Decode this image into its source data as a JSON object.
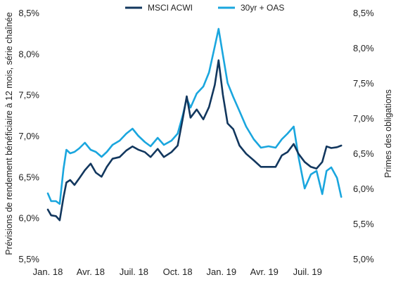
{
  "chart_data": {
    "type": "line",
    "title": "",
    "ylabel_left": "Prévisions de rendement bénéficiaire à 12 mois, série chaînée",
    "ylabel_right": "Primes des obligations",
    "ylim_left": [
      5.5,
      8.5
    ],
    "ylim_right": [
      5.0,
      8.5
    ],
    "x_range": [
      "2018-01-01",
      "2019-09-20"
    ],
    "x_ticks": [
      {
        "label": "Jan. 18",
        "date": "2018-01-01"
      },
      {
        "label": "Avr. 18",
        "date": "2018-04-01"
      },
      {
        "label": "Juil. 18",
        "date": "2018-07-01"
      },
      {
        "label": "Oct. 18",
        "date": "2018-10-01"
      },
      {
        "label": "Jan. 19",
        "date": "2019-01-01"
      },
      {
        "label": "Avr. 19",
        "date": "2019-04-01"
      },
      {
        "label": "Juil. 19",
        "date": "2019-07-01"
      }
    ],
    "y_ticks_left": [
      "5,5%",
      "6,0%",
      "6,5%",
      "7,0%",
      "7,5%",
      "8,0%",
      "8,5%"
    ],
    "y_ticks_left_values": [
      5.5,
      6.0,
      6.5,
      7.0,
      7.5,
      8.0,
      8.5
    ],
    "y_ticks_right": [
      "5,0%",
      "5,5%",
      "6,0%",
      "6,5%",
      "7,0%",
      "7,5%",
      "8,0%",
      "8,5%"
    ],
    "y_ticks_right_values": [
      5.0,
      5.5,
      6.0,
      6.5,
      7.0,
      7.5,
      8.0,
      8.5
    ],
    "legend_position": "top-center",
    "grid": false,
    "series": [
      {
        "name": "MSCI ACWI",
        "axis": "left",
        "color": "#12375e",
        "points": [
          [
            "2018-01-01",
            6.1
          ],
          [
            "2018-01-08",
            6.03
          ],
          [
            "2018-01-18",
            6.02
          ],
          [
            "2018-01-26",
            5.97
          ],
          [
            "2018-02-03",
            6.25
          ],
          [
            "2018-02-09",
            6.43
          ],
          [
            "2018-02-17",
            6.46
          ],
          [
            "2018-02-26",
            6.4
          ],
          [
            "2018-03-08",
            6.48
          ],
          [
            "2018-03-20",
            6.58
          ],
          [
            "2018-04-01",
            6.66
          ],
          [
            "2018-04-12",
            6.55
          ],
          [
            "2018-04-24",
            6.5
          ],
          [
            "2018-05-05",
            6.62
          ],
          [
            "2018-05-17",
            6.72
          ],
          [
            "2018-06-01",
            6.74
          ],
          [
            "2018-06-15",
            6.82
          ],
          [
            "2018-06-28",
            6.87
          ],
          [
            "2018-07-10",
            6.83
          ],
          [
            "2018-07-24",
            6.8
          ],
          [
            "2018-08-05",
            6.74
          ],
          [
            "2018-08-20",
            6.84
          ],
          [
            "2018-09-02",
            6.74
          ],
          [
            "2018-09-18",
            6.8
          ],
          [
            "2018-10-01",
            6.88
          ],
          [
            "2018-10-12",
            7.22
          ],
          [
            "2018-10-20",
            7.48
          ],
          [
            "2018-10-28",
            7.22
          ],
          [
            "2018-11-10",
            7.32
          ],
          [
            "2018-11-24",
            7.2
          ],
          [
            "2018-12-06",
            7.35
          ],
          [
            "2018-12-18",
            7.62
          ],
          [
            "2018-12-26",
            7.92
          ],
          [
            "2019-01-04",
            7.5
          ],
          [
            "2019-01-14",
            7.15
          ],
          [
            "2019-01-26",
            7.08
          ],
          [
            "2019-02-08",
            6.88
          ],
          [
            "2019-02-22",
            6.78
          ],
          [
            "2019-03-10",
            6.7
          ],
          [
            "2019-03-25",
            6.62
          ],
          [
            "2019-04-10",
            6.62
          ],
          [
            "2019-04-25",
            6.62
          ],
          [
            "2019-05-08",
            6.76
          ],
          [
            "2019-05-20",
            6.8
          ],
          [
            "2019-06-02",
            6.9
          ],
          [
            "2019-06-12",
            6.78
          ],
          [
            "2019-06-25",
            6.68
          ],
          [
            "2019-07-08",
            6.62
          ],
          [
            "2019-07-20",
            6.6
          ],
          [
            "2019-08-01",
            6.68
          ],
          [
            "2019-08-10",
            6.87
          ],
          [
            "2019-08-20",
            6.85
          ],
          [
            "2019-09-01",
            6.86
          ],
          [
            "2019-09-10",
            6.88
          ]
        ]
      },
      {
        "name": "30yr + OAS",
        "axis": "right",
        "color": "#1aa6de",
        "points": [
          [
            "2018-01-01",
            5.93
          ],
          [
            "2018-01-08",
            5.82
          ],
          [
            "2018-01-18",
            5.82
          ],
          [
            "2018-01-26",
            5.78
          ],
          [
            "2018-02-03",
            6.28
          ],
          [
            "2018-02-09",
            6.55
          ],
          [
            "2018-02-17",
            6.5
          ],
          [
            "2018-02-26",
            6.52
          ],
          [
            "2018-03-08",
            6.57
          ],
          [
            "2018-03-20",
            6.65
          ],
          [
            "2018-04-01",
            6.55
          ],
          [
            "2018-04-12",
            6.52
          ],
          [
            "2018-04-24",
            6.45
          ],
          [
            "2018-05-05",
            6.52
          ],
          [
            "2018-05-17",
            6.62
          ],
          [
            "2018-06-01",
            6.68
          ],
          [
            "2018-06-15",
            6.78
          ],
          [
            "2018-06-28",
            6.85
          ],
          [
            "2018-07-10",
            6.75
          ],
          [
            "2018-07-24",
            6.66
          ],
          [
            "2018-08-05",
            6.6
          ],
          [
            "2018-08-20",
            6.72
          ],
          [
            "2018-09-02",
            6.62
          ],
          [
            "2018-09-18",
            6.68
          ],
          [
            "2018-10-01",
            6.78
          ],
          [
            "2018-10-12",
            7.05
          ],
          [
            "2018-10-20",
            7.28
          ],
          [
            "2018-10-28",
            7.15
          ],
          [
            "2018-11-10",
            7.35
          ],
          [
            "2018-11-24",
            7.45
          ],
          [
            "2018-12-06",
            7.65
          ],
          [
            "2018-12-18",
            8.02
          ],
          [
            "2018-12-26",
            8.27
          ],
          [
            "2019-01-04",
            7.9
          ],
          [
            "2019-01-14",
            7.5
          ],
          [
            "2019-01-26",
            7.3
          ],
          [
            "2019-02-08",
            7.1
          ],
          [
            "2019-02-22",
            6.88
          ],
          [
            "2019-03-10",
            6.7
          ],
          [
            "2019-03-25",
            6.58
          ],
          [
            "2019-04-10",
            6.6
          ],
          [
            "2019-04-25",
            6.58
          ],
          [
            "2019-05-08",
            6.7
          ],
          [
            "2019-05-20",
            6.78
          ],
          [
            "2019-06-02",
            6.88
          ],
          [
            "2019-06-12",
            6.45
          ],
          [
            "2019-06-25",
            6.0
          ],
          [
            "2019-07-08",
            6.2
          ],
          [
            "2019-07-20",
            6.25
          ],
          [
            "2019-08-01",
            5.92
          ],
          [
            "2019-08-10",
            6.25
          ],
          [
            "2019-08-20",
            6.3
          ],
          [
            "2019-09-01",
            6.15
          ],
          [
            "2019-09-10",
            5.88
          ]
        ]
      }
    ]
  }
}
